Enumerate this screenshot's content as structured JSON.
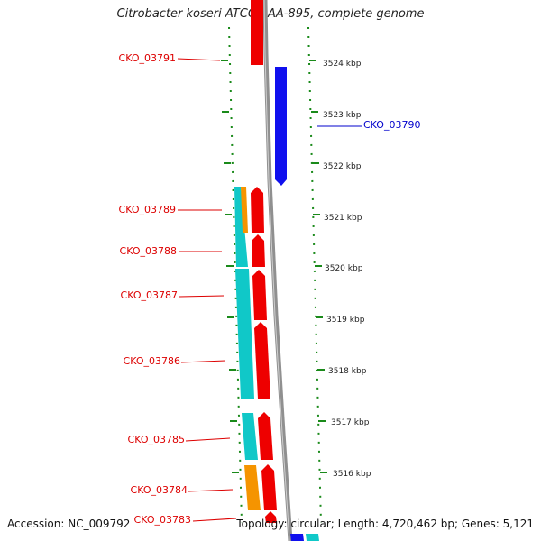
{
  "title": "Citrobacter koseri ATCC BAA-895, complete genome",
  "footer": {
    "accession": "Accession: NC_009792",
    "topology": "Topology: circular; Length: 4,720,462 bp; Genes: 5,121"
  },
  "colors": {
    "forward_cds": "#ee0000",
    "reverse_cds": "#1010ee",
    "teal_feature": "#10c8c8",
    "orange_feature": "#f59400",
    "backbone": "#888888",
    "tick": "#1a8a1a",
    "label_forward": "#dd0000",
    "label_reverse": "#0000cc"
  },
  "ruler": {
    "unit": "kbp",
    "labels": [
      "3524 kbp",
      "3523 kbp",
      "3522 kbp",
      "3521 kbp",
      "3520 kbp",
      "3519 kbp",
      "3518 kbp",
      "3517 kbp",
      "3516 kbp"
    ]
  },
  "gene_labels": [
    {
      "name": "CKO_03791",
      "strand": "forward"
    },
    {
      "name": "CKO_03790",
      "strand": "reverse"
    },
    {
      "name": "CKO_03789",
      "strand": "forward"
    },
    {
      "name": "CKO_03788",
      "strand": "forward"
    },
    {
      "name": "CKO_03787",
      "strand": "forward"
    },
    {
      "name": "CKO_03786",
      "strand": "forward"
    },
    {
      "name": "CKO_03785",
      "strand": "forward"
    },
    {
      "name": "CKO_03784",
      "strand": "forward"
    },
    {
      "name": "CKO_03783",
      "strand": "forward"
    }
  ]
}
